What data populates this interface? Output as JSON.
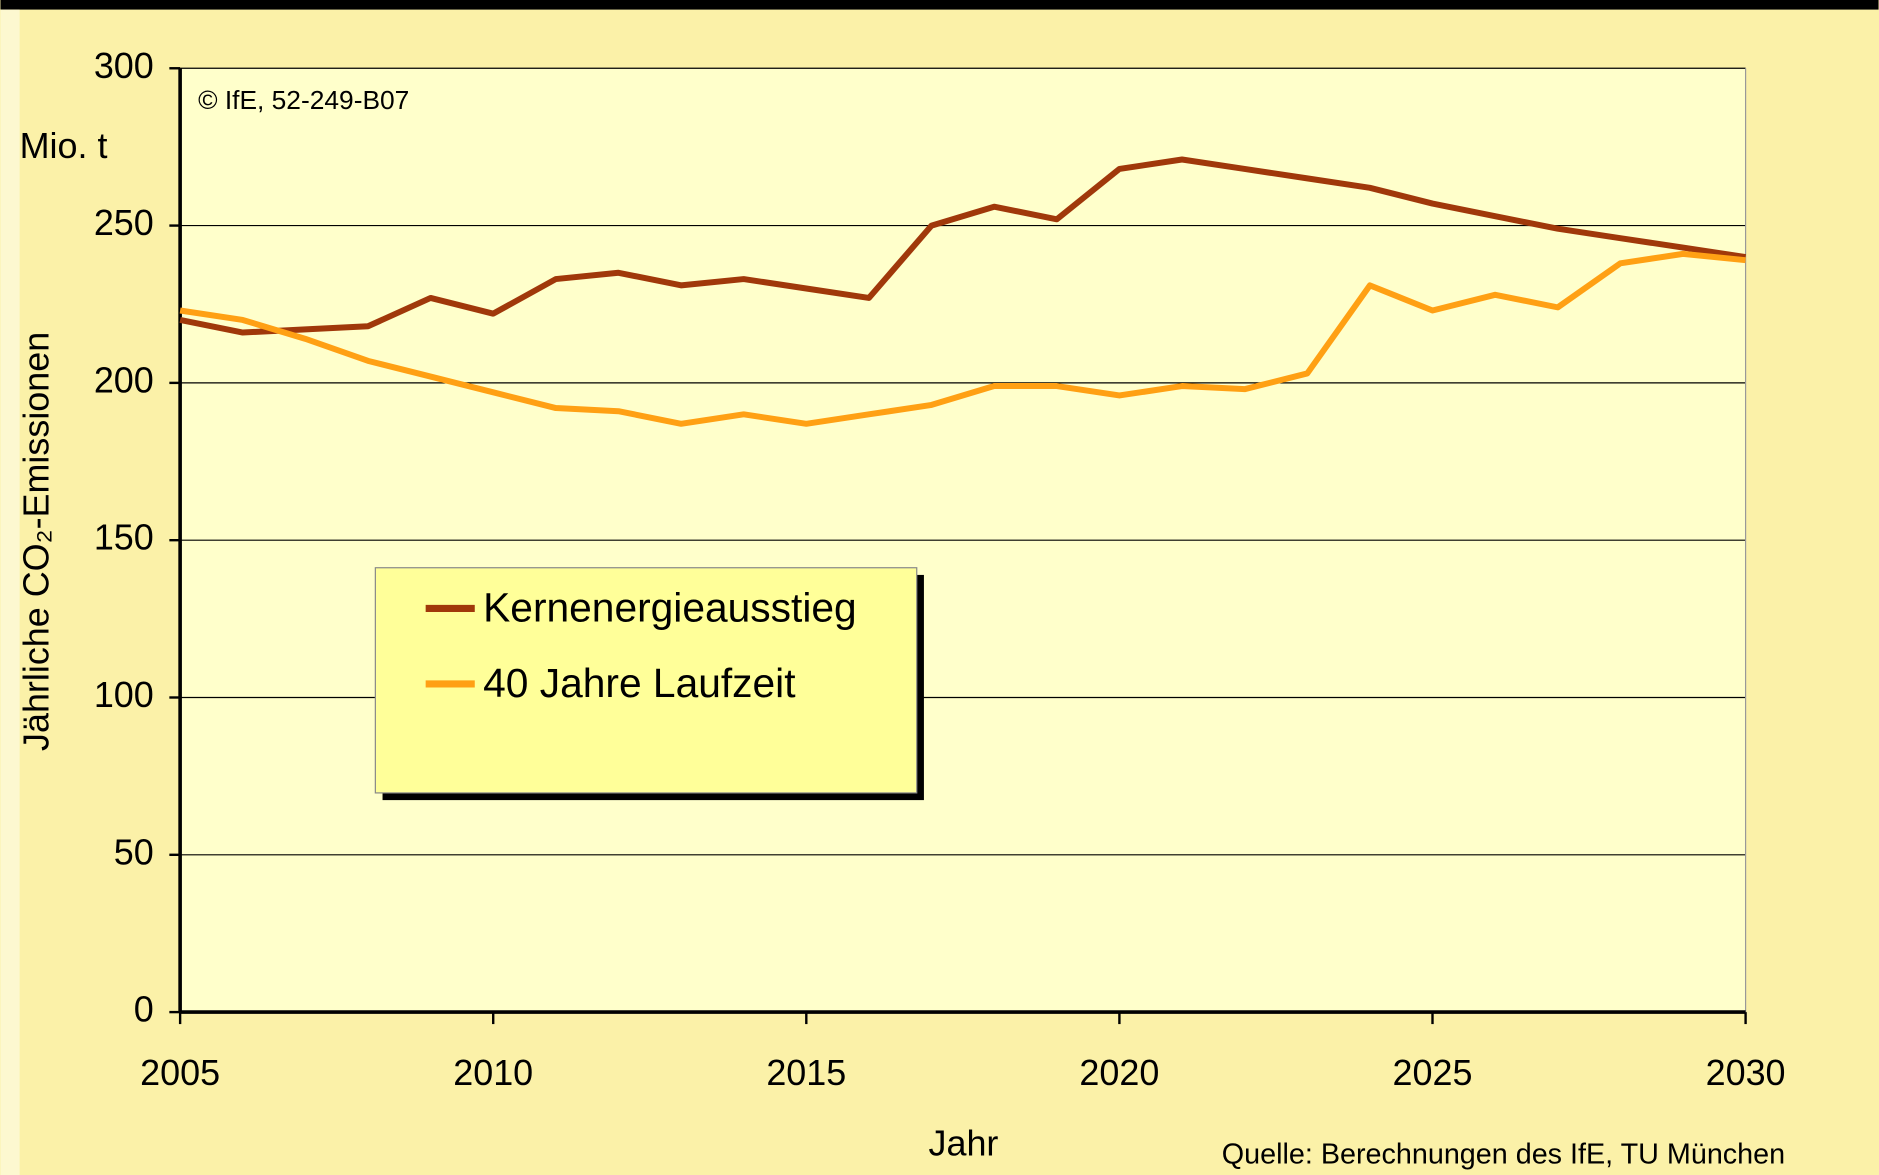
{
  "chart_data": {
    "type": "line",
    "y_label": "Jährliche CO₂-Emissionen",
    "y_unit": "Mio. t",
    "x_label": "Jahr",
    "copyright": "© IfE, 52-249-B07",
    "source": "Quelle: Berechnungen des IfE, TU München",
    "x": [
      2005,
      2006,
      2007,
      2008,
      2009,
      2010,
      2011,
      2012,
      2013,
      2014,
      2015,
      2016,
      2017,
      2018,
      2019,
      2020,
      2021,
      2022,
      2023,
      2024,
      2025,
      2026,
      2027,
      2028,
      2029,
      2030
    ],
    "series": [
      {
        "name": "Kernenergieausstieg",
        "color": "#a0380a",
        "values": [
          220,
          216,
          217,
          218,
          227,
          222,
          233,
          235,
          231,
          233,
          230,
          227,
          250,
          256,
          252,
          268,
          271,
          268,
          265,
          262,
          257,
          253,
          249,
          246,
          243,
          240
        ]
      },
      {
        "name": "40 Jahre Laufzeit",
        "color": "#ffa014",
        "values": [
          223,
          220,
          214,
          207,
          202,
          197,
          192,
          191,
          187,
          190,
          187,
          190,
          193,
          199,
          199,
          196,
          199,
          198,
          203,
          231,
          223,
          228,
          224,
          238,
          241,
          239
        ]
      }
    ],
    "xlim": [
      2005,
      2030
    ],
    "xticks": [
      2005,
      2010,
      2015,
      2020,
      2025,
      2030
    ],
    "ylim": [
      0,
      300
    ],
    "yticks": [
      0,
      50,
      100,
      150,
      200,
      250,
      300
    ],
    "grid": true
  }
}
